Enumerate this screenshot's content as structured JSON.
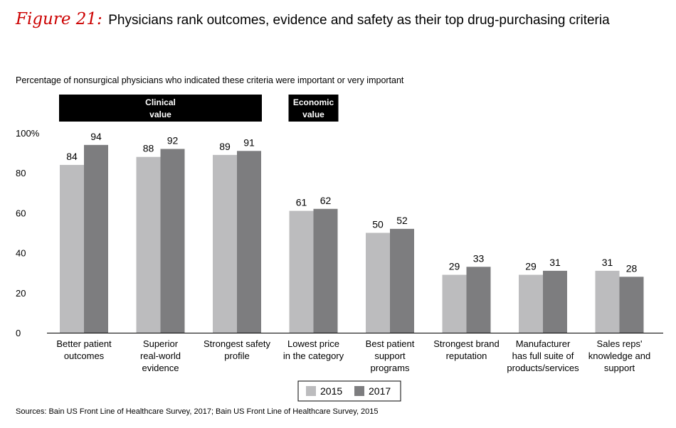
{
  "figure": {
    "label": "Figure 21:",
    "title": "Physicians rank outcomes, evidence and safety as their top drug-purchasing criteria"
  },
  "subtitle": "Percentage of nonsurgical physicians who indicated these criteria were important or very important",
  "source": "Sources: Bain US Front Line of Healthcare Survey, 2017; Bain US Front Line of Healthcare Survey, 2015",
  "groups": [
    {
      "lines": [
        "Clinical",
        "value"
      ],
      "from": 0,
      "to": 2
    },
    {
      "lines": [
        "Economic",
        "value"
      ],
      "from": 3,
      "to": 3
    }
  ],
  "colors": {
    "s2015": "#bcbcbe",
    "s2017": "#7d7d7f",
    "header": "#000000",
    "accent": "#cc0000"
  },
  "chart_data": {
    "type": "bar",
    "title": "Physicians rank outcomes, evidence and safety as their top drug-purchasing criteria",
    "xlabel": "",
    "ylabel": "",
    "ylim": [
      0,
      100
    ],
    "yticks": [
      "100%",
      "80",
      "60",
      "40",
      "20",
      "0"
    ],
    "ytick_values": [
      100,
      80,
      60,
      40,
      20,
      0
    ],
    "categories": [
      [
        "Better patient",
        "outcomes"
      ],
      [
        "Superior",
        "real-world",
        "evidence"
      ],
      [
        "Strongest safety",
        "profile"
      ],
      [
        "Lowest price",
        "in the category"
      ],
      [
        "Best patient",
        "support",
        "programs"
      ],
      [
        "Strongest brand",
        "reputation"
      ],
      [
        "Manufacturer",
        "has full suite of",
        "products/services"
      ],
      [
        "Sales reps'",
        "knowledge and",
        "support"
      ]
    ],
    "series": [
      {
        "name": "2015",
        "values": [
          84,
          88,
          89,
          61,
          50,
          29,
          29,
          31
        ]
      },
      {
        "name": "2017",
        "values": [
          94,
          92,
          91,
          62,
          52,
          33,
          31,
          28
        ]
      }
    ],
    "legend": "bottom-center"
  }
}
